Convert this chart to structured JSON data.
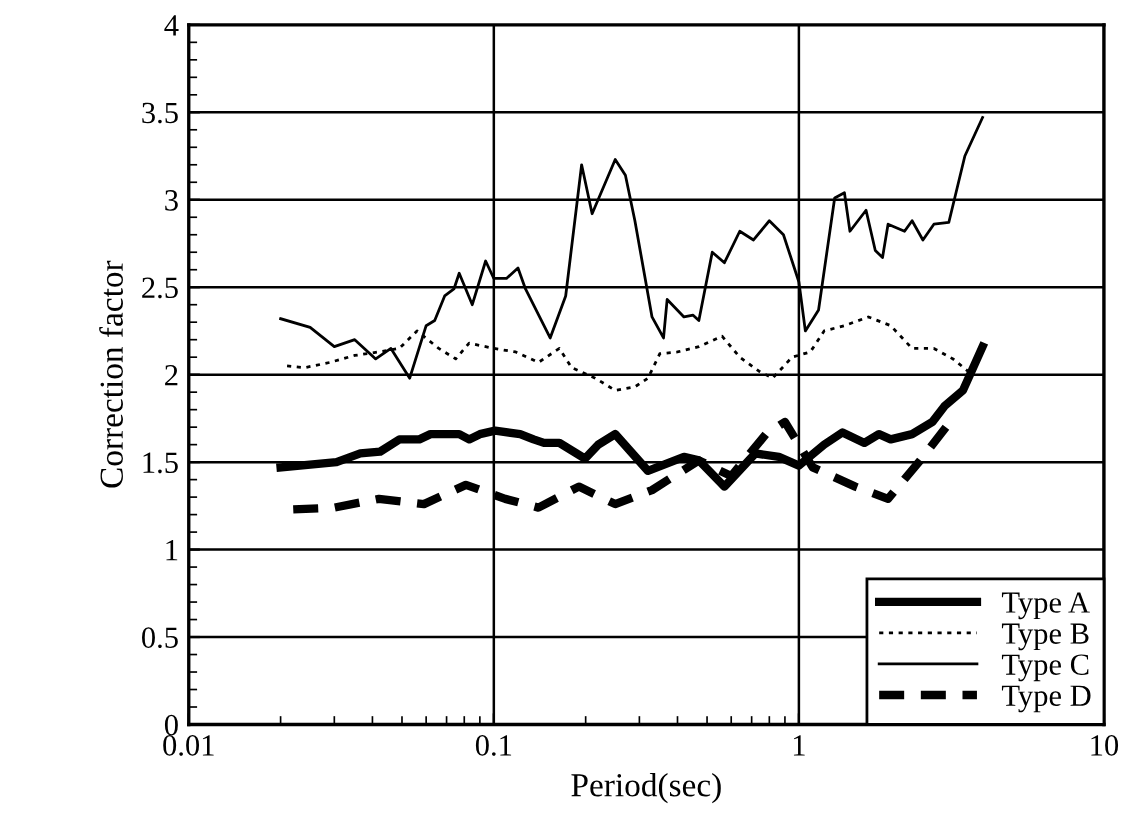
{
  "chart_data": {
    "type": "line",
    "xlabel": "Period(sec)",
    "ylabel": "Correction factor",
    "log": "x",
    "xlim": [
      0.01,
      10
    ],
    "xticks": [
      0.01,
      0.1,
      1,
      10
    ],
    "ylim": [
      0,
      4
    ],
    "yticks": [
      0,
      0.5,
      1,
      1.5,
      2,
      2.5,
      3,
      3.5,
      4
    ],
    "grid": true,
    "legend": "bottom right",
    "marker": "none",
    "series": [
      {
        "name": "Type A",
        "color": "#000000",
        "line_style": "solid",
        "x": [
          0.02,
          0.0305,
          0.0365,
          0.0424,
          0.049,
          0.057,
          0.062,
          0.077,
          0.083,
          0.09,
          0.101,
          0.122,
          0.135,
          0.146,
          0.164,
          0.199,
          0.22,
          0.25,
          0.32,
          0.42,
          0.47,
          0.57,
          0.72,
          0.86,
          1.0,
          1.21,
          1.39,
          1.64,
          1.83,
          2.0,
          2.35,
          2.74,
          3.0,
          3.45,
          4.0
        ],
        "values": [
          1.47,
          1.5,
          1.55,
          1.56,
          1.63,
          1.63,
          1.66,
          1.66,
          1.63,
          1.66,
          1.68,
          1.66,
          1.63,
          1.61,
          1.61,
          1.52,
          1.6,
          1.66,
          1.45,
          1.53,
          1.51,
          1.36,
          1.55,
          1.53,
          1.48,
          1.6,
          1.67,
          1.61,
          1.66,
          1.63,
          1.66,
          1.73,
          1.82,
          1.91,
          2.16
        ]
      },
      {
        "name": "Type B",
        "color": "#000000",
        "line_style": "dotted",
        "x": [
          0.021,
          0.024,
          0.029,
          0.035,
          0.042,
          0.049,
          0.056,
          0.066,
          0.075,
          0.083,
          0.1,
          0.118,
          0.14,
          0.164,
          0.18,
          0.215,
          0.25,
          0.29,
          0.32,
          0.35,
          0.4,
          0.47,
          0.56,
          0.64,
          0.74,
          0.82,
          0.95,
          1.09,
          1.21,
          1.41,
          1.69,
          2.0,
          2.35,
          2.77,
          3.2,
          3.7
        ],
        "values": [
          2.05,
          2.04,
          2.07,
          2.11,
          2.13,
          2.15,
          2.25,
          2.15,
          2.09,
          2.18,
          2.15,
          2.13,
          2.07,
          2.15,
          2.04,
          1.98,
          1.91,
          1.93,
          1.98,
          2.12,
          2.13,
          2.16,
          2.22,
          2.1,
          2.02,
          1.98,
          2.1,
          2.13,
          2.25,
          2.28,
          2.33,
          2.28,
          2.15,
          2.15,
          2.09,
          2.0
        ]
      },
      {
        "name": "Type C",
        "color": "#000000",
        "line_style": "solid",
        "x": [
          0.02,
          0.025,
          0.03,
          0.035,
          0.041,
          0.046,
          0.053,
          0.06,
          0.064,
          0.069,
          0.074,
          0.077,
          0.085,
          0.094,
          0.1,
          0.11,
          0.12,
          0.127,
          0.153,
          0.172,
          0.194,
          0.21,
          0.25,
          0.27,
          0.29,
          0.33,
          0.36,
          0.37,
          0.42,
          0.45,
          0.47,
          0.52,
          0.57,
          0.64,
          0.71,
          0.8,
          0.89,
          1.0,
          1.05,
          1.16,
          1.31,
          1.41,
          1.47,
          1.66,
          1.78,
          1.88,
          1.96,
          2.22,
          2.35,
          2.55,
          2.77,
          3.1,
          3.5,
          4.0
        ],
        "values": [
          2.32,
          2.27,
          2.16,
          2.2,
          2.09,
          2.15,
          1.98,
          2.28,
          2.31,
          2.45,
          2.49,
          2.58,
          2.4,
          2.65,
          2.55,
          2.55,
          2.61,
          2.49,
          2.21,
          2.45,
          3.2,
          2.92,
          3.23,
          3.14,
          2.88,
          2.33,
          2.21,
          2.43,
          2.33,
          2.34,
          2.31,
          2.7,
          2.64,
          2.82,
          2.77,
          2.88,
          2.8,
          2.53,
          2.25,
          2.37,
          3.01,
          3.04,
          2.82,
          2.94,
          2.71,
          2.67,
          2.86,
          2.82,
          2.88,
          2.77,
          2.86,
          2.87,
          3.25,
          3.47
        ]
      },
      {
        "name": "Type D",
        "color": "#000000",
        "line_style": "dashed",
        "x": [
          0.022,
          0.03,
          0.042,
          0.059,
          0.081,
          0.109,
          0.14,
          0.19,
          0.25,
          0.33,
          0.47,
          0.6,
          0.78,
          0.9,
          1.11,
          1.53,
          1.96,
          2.5,
          3.1
        ],
        "values": [
          1.23,
          1.24,
          1.29,
          1.26,
          1.37,
          1.29,
          1.24,
          1.36,
          1.26,
          1.34,
          1.51,
          1.42,
          1.66,
          1.73,
          1.47,
          1.36,
          1.29,
          1.51,
          1.72
        ]
      }
    ]
  }
}
